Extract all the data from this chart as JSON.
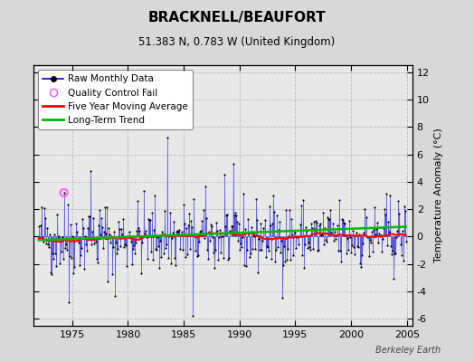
{
  "title": "BRACKNELL/BEAUFORT",
  "subtitle": "51.383 N, 0.783 W (United Kingdom)",
  "ylabel_right": "Temperature Anomaly (°C)",
  "watermark": "Berkeley Earth",
  "ylim": [
    -6.5,
    12.5
  ],
  "xlim": [
    1971.5,
    2005.5
  ],
  "yticks": [
    -6,
    -4,
    -2,
    0,
    2,
    4,
    6,
    8,
    10,
    12
  ],
  "xticks": [
    1975,
    1980,
    1985,
    1990,
    1995,
    2000,
    2005
  ],
  "bg_color": "#d8d8d8",
  "plot_bg_color": "#e8e8e8",
  "grid_color": "#bbbbbb",
  "raw_line_color": "#0000cc",
  "raw_fill_color": "#aaaaee",
  "raw_dot_color": "#000000",
  "ma_color": "#ff0000",
  "trend_color": "#00bb00",
  "qc_color": "#ff44ff",
  "legend_labels": [
    "Raw Monthly Data",
    "Quality Control Fail",
    "Five Year Moving Average",
    "Long-Term Trend"
  ],
  "start_year": 1972,
  "n_months": 396,
  "seed": 42,
  "qc_year": 1974.25,
  "qc_val": 3.2
}
